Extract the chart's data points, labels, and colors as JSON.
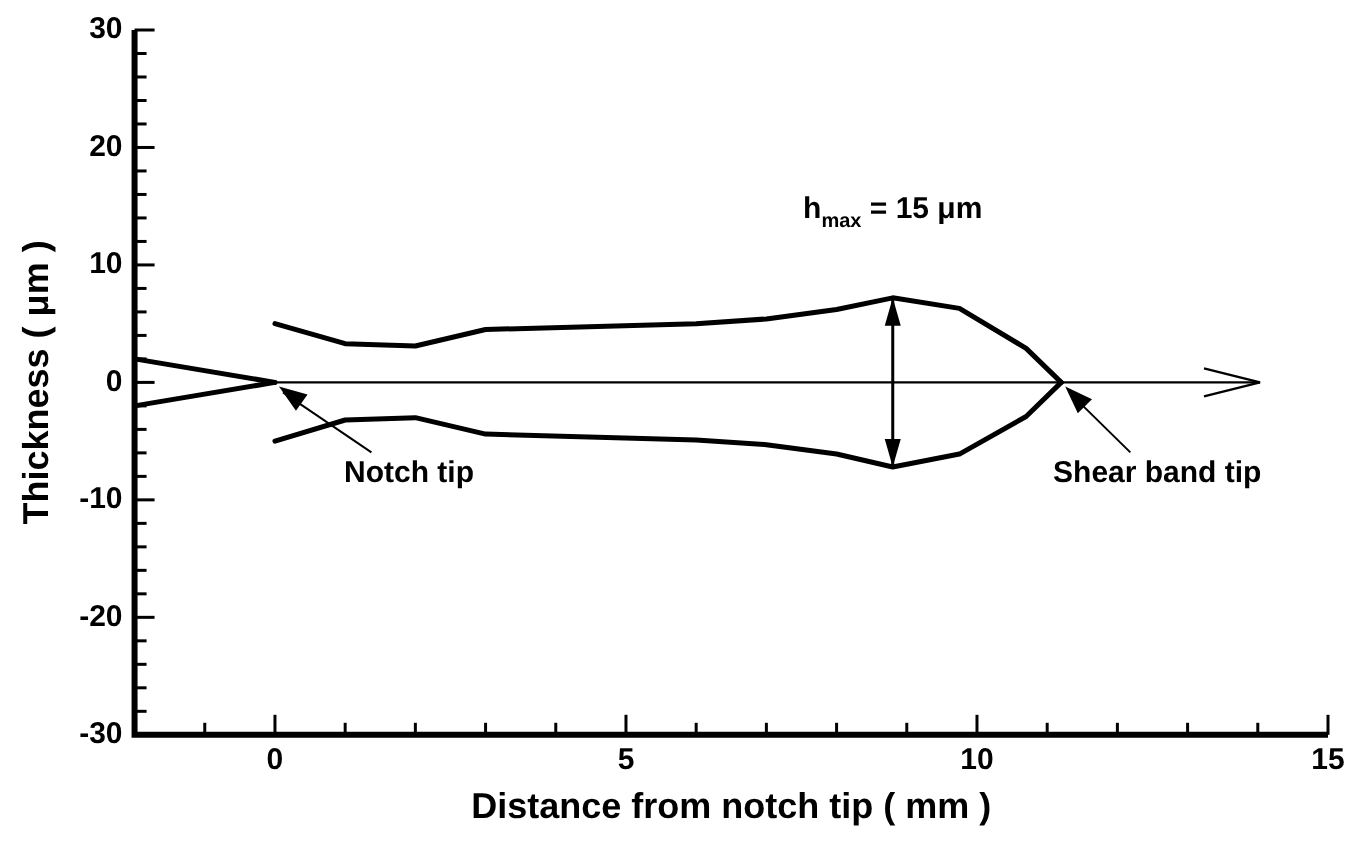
{
  "chart_data": {
    "type": "line",
    "xlabel": "Distance from notch tip ( mm )",
    "ylabel": "Thickness ( μm )",
    "xlim": [
      -2,
      15
    ],
    "ylim": [
      -30,
      30
    ],
    "xticks": [
      {
        "value": -1,
        "label": null
      },
      0,
      {
        "value": 1,
        "label": null
      },
      {
        "value": 2,
        "label": null
      },
      {
        "value": 3,
        "label": null
      },
      {
        "value": 4,
        "label": null
      },
      5,
      {
        "value": 6,
        "label": null
      },
      {
        "value": 7,
        "label": null
      },
      {
        "value": 8,
        "label": null
      },
      {
        "value": 9,
        "label": null
      },
      10,
      {
        "value": 11,
        "label": null
      },
      {
        "value": 12,
        "label": null
      },
      {
        "value": 13,
        "label": null
      },
      {
        "value": 14,
        "label": null
      },
      15
    ],
    "yticks": [
      -30,
      {
        "value": -28,
        "label": null
      },
      {
        "value": -26,
        "label": null
      },
      {
        "value": -24,
        "label": null
      },
      {
        "value": -22,
        "label": null
      },
      -20,
      {
        "value": -18,
        "label": null
      },
      {
        "value": -16,
        "label": null
      },
      {
        "value": -14,
        "label": null
      },
      {
        "value": -12,
        "label": null
      },
      -10,
      {
        "value": -8,
        "label": null
      },
      {
        "value": -6,
        "label": null
      },
      {
        "value": -4,
        "label": null
      },
      {
        "value": -2,
        "label": null
      },
      0,
      {
        "value": 2,
        "label": null
      },
      {
        "value": 4,
        "label": null
      },
      {
        "value": 6,
        "label": null
      },
      {
        "value": 8,
        "label": null
      },
      10,
      {
        "value": 12,
        "label": null
      },
      {
        "value": 14,
        "label": null
      },
      {
        "value": 16,
        "label": null
      },
      {
        "value": 18,
        "label": null
      },
      20,
      {
        "value": 22,
        "label": null
      },
      {
        "value": 24,
        "label": null
      },
      {
        "value": 26,
        "label": null
      },
      {
        "value": 28,
        "label": null
      },
      30
    ],
    "ref_lines": [
      {
        "axis": "y",
        "value": 0
      }
    ],
    "grid": false,
    "legend": false,
    "marker": "none",
    "line_style": "solid",
    "series": [
      {
        "color": "#000000",
        "x": [
          0,
          1,
          2,
          3,
          6,
          7,
          8,
          8.8,
          9.75,
          10.7,
          11.2
        ],
        "values": [
          5,
          3.3,
          3.1,
          4.5,
          5.0,
          5.4,
          6.2,
          7.2,
          6.3,
          2.9,
          0
        ]
      },
      {
        "color": "#000000",
        "x": [
          0,
          1,
          2,
          3,
          6,
          7,
          8,
          8.8,
          9.75,
          10.7,
          11.2
        ],
        "values": [
          -5,
          -3.2,
          -3,
          -4.4,
          -4.9,
          -5.3,
          -6.1,
          -7.2,
          -6.1,
          -2.9,
          0
        ]
      },
      {
        "color": "#000000",
        "x": [
          -2,
          0
        ],
        "values": [
          2,
          0
        ]
      },
      {
        "color": "#000000",
        "x": [
          -2,
          0
        ],
        "values": [
          -2,
          0
        ]
      }
    ],
    "annotations": [
      {
        "text": "Notch tip",
        "x": 0,
        "y": 0
      },
      {
        "text": "Shear band tip",
        "x": 11.2,
        "y": 0
      },
      {
        "text": "h$_{max}$ = 15 μm",
        "x": 8.8,
        "y": 7.2
      }
    ]
  }
}
